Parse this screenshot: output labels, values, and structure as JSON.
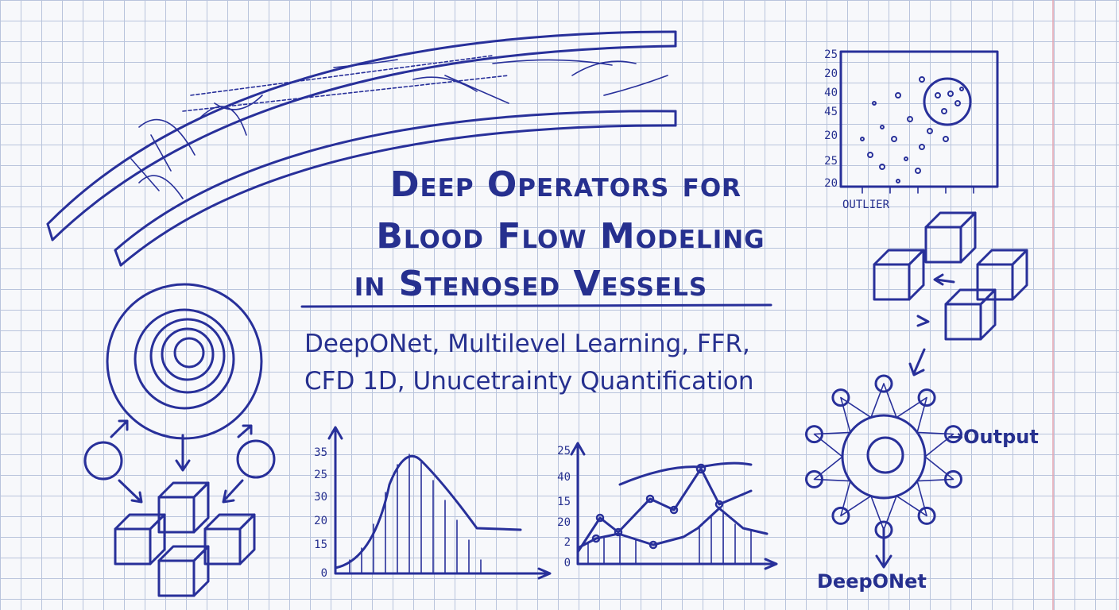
{
  "title": {
    "lines": [
      "Deep Operators for",
      "Blood Flow Modeling",
      "in Stenosed Vessels"
    ]
  },
  "subtitle": {
    "lines": [
      "DeepONet, Multilevel Learning, FFR,",
      "CFD 1D, Unucetrainty Quantification"
    ]
  },
  "scatter_sketch": {
    "y_labels": [
      "25",
      "20",
      "40",
      "45",
      "20",
      "25",
      "20"
    ],
    "x_label": "OUTLIER"
  },
  "distribution_sketch": {
    "y_labels": [
      "35",
      "25",
      "30",
      "20",
      "15",
      "0"
    ]
  },
  "line_sketch": {
    "y_labels": [
      "25",
      "40",
      "15",
      "20",
      "2",
      "0"
    ]
  },
  "network_sketch": {
    "output_label": "→Output",
    "model_label": "DeepONet"
  }
}
